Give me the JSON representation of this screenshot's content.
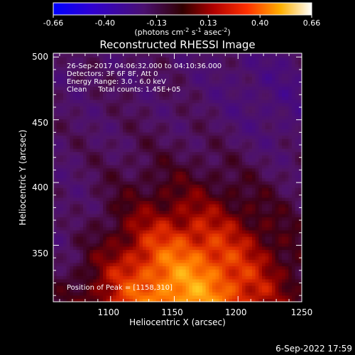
{
  "chart_data": {
    "type": "heatmap",
    "title": "Reconstructed RHESSI Image",
    "xlabel": "Heliocentric X (arcsec)",
    "ylabel": "Heliocentric Y (arcsec)",
    "xlim": [
      1055,
      1250
    ],
    "ylim": [
      305,
      503
    ],
    "xticks": [
      1100,
      1150,
      1200,
      1250
    ],
    "yticks": [
      350,
      400,
      450,
      500
    ],
    "colorbar": {
      "ticks": [
        "-0.66",
        "-0.40",
        "-0.13",
        "0.13",
        "0.40",
        "0.66"
      ],
      "range": [
        -0.66,
        0.66
      ],
      "units_prefix": "(photons cm",
      "units_exp1": "-2",
      "units_mid": " s",
      "units_exp2": "-1",
      "units_suffix1": " asec",
      "units_exp3": "-2",
      "units_end": ")"
    },
    "info_lines": [
      "26-Sep-2017 04:06:32.000 to 04:10:36.000",
      "Detectors: 3F 6F 8F, Att 0",
      "Energy Range: 3.0 - 6.0 keV",
      "Clean     Total counts: 1.45E+05"
    ],
    "peak_label": "Position of Peak = [1158,310]",
    "peak": {
      "x": 1158,
      "y": 310
    },
    "colors": {
      "background": "#000000",
      "axis": "#ffffff",
      "colormap": [
        "#0000ff",
        "#3d00c8",
        "#5a1a8c",
        "#8a1a3c",
        "#d21010",
        "#ff6a00",
        "#ffc800",
        "#ffffff"
      ]
    }
  },
  "footer": {
    "date": "6-Sep-2022 17:59"
  }
}
